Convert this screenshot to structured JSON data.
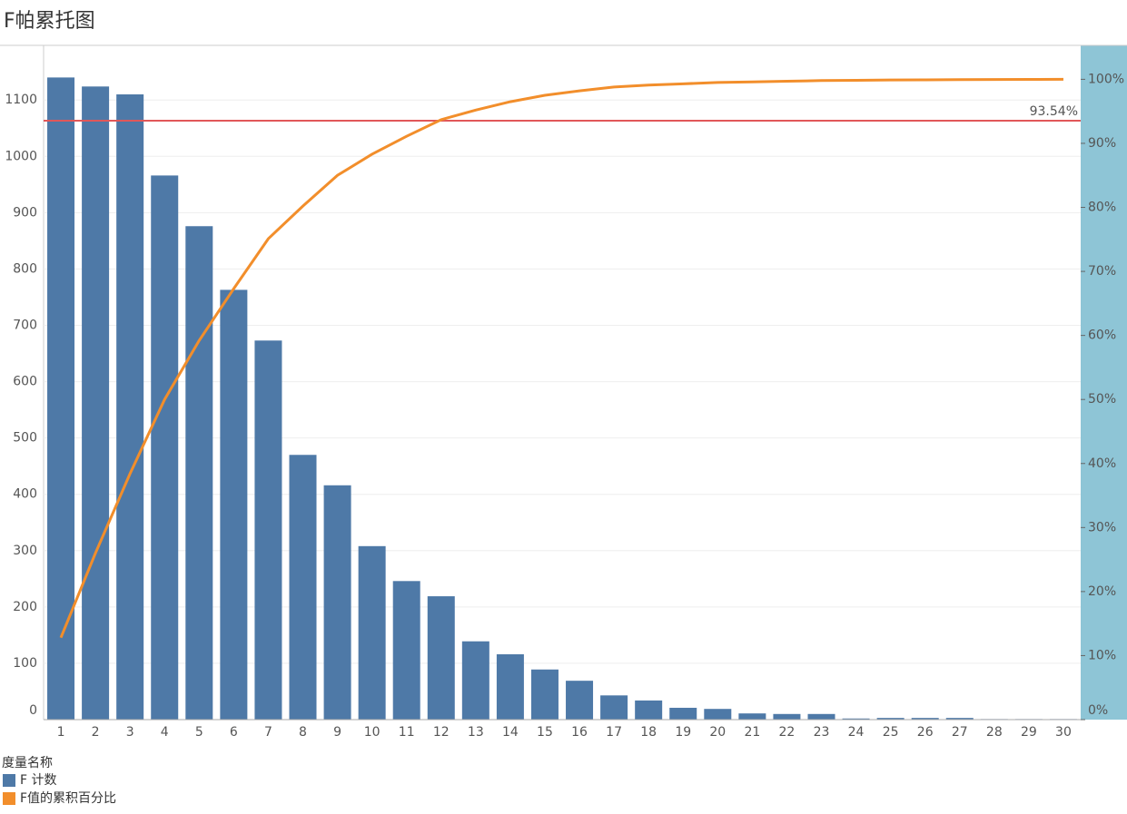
{
  "chart_data": {
    "type": "pareto",
    "title": "F帕累托图",
    "categories": [
      1,
      2,
      3,
      4,
      5,
      6,
      7,
      8,
      9,
      10,
      11,
      12,
      13,
      14,
      15,
      16,
      17,
      18,
      19,
      20,
      21,
      22,
      23,
      24,
      25,
      26,
      27,
      28,
      29,
      30
    ],
    "series": [
      {
        "name": "F 计数",
        "type": "bar",
        "color": "#4e79a7",
        "values": [
          1140,
          1124,
          1110,
          966,
          876,
          763,
          673,
          470,
          416,
          308,
          246,
          219,
          139,
          116,
          89,
          69,
          43,
          34,
          21,
          19,
          11,
          10,
          10,
          2,
          3,
          3,
          3,
          1,
          1,
          1
        ]
      },
      {
        "name": "F值的累积百分比",
        "type": "line",
        "axis": "y2",
        "color": "#f28e2b",
        "values": [
          12.8,
          26,
          38.4,
          50,
          59.2,
          67.3,
          75.1,
          80.2,
          85,
          88.3,
          91.1,
          93.7,
          95.2,
          96.5,
          97.5,
          98.2,
          98.8,
          99.1,
          99.3,
          99.5,
          99.6,
          99.7,
          99.8,
          99.85,
          99.9,
          99.92,
          99.95,
          99.97,
          99.99,
          100
        ]
      }
    ],
    "ylim": [
      0,
      1197
    ],
    "yticks": [
      0,
      100,
      200,
      300,
      400,
      500,
      600,
      700,
      800,
      900,
      1000,
      1100
    ],
    "y2lim": [
      0,
      105.3
    ],
    "y2ticks": [
      {
        "value": 0,
        "label": "0%"
      },
      {
        "value": 10,
        "label": "10%"
      },
      {
        "value": 20,
        "label": "20%"
      },
      {
        "value": 30,
        "label": "30%"
      },
      {
        "value": 40,
        "label": "40%"
      },
      {
        "value": 50,
        "label": "50%"
      },
      {
        "value": 60,
        "label": "60%"
      },
      {
        "value": 70,
        "label": "70%"
      },
      {
        "value": 80,
        "label": "80%"
      },
      {
        "value": 90,
        "label": "90%"
      },
      {
        "value": 100,
        "label": "100%"
      }
    ],
    "reference_line": {
      "value": 93.54,
      "label": "93.54%",
      "axis": "y2",
      "color": "#e15759"
    },
    "grid": true,
    "legend_title": "度量名称",
    "legend_position": "bottom-left"
  }
}
